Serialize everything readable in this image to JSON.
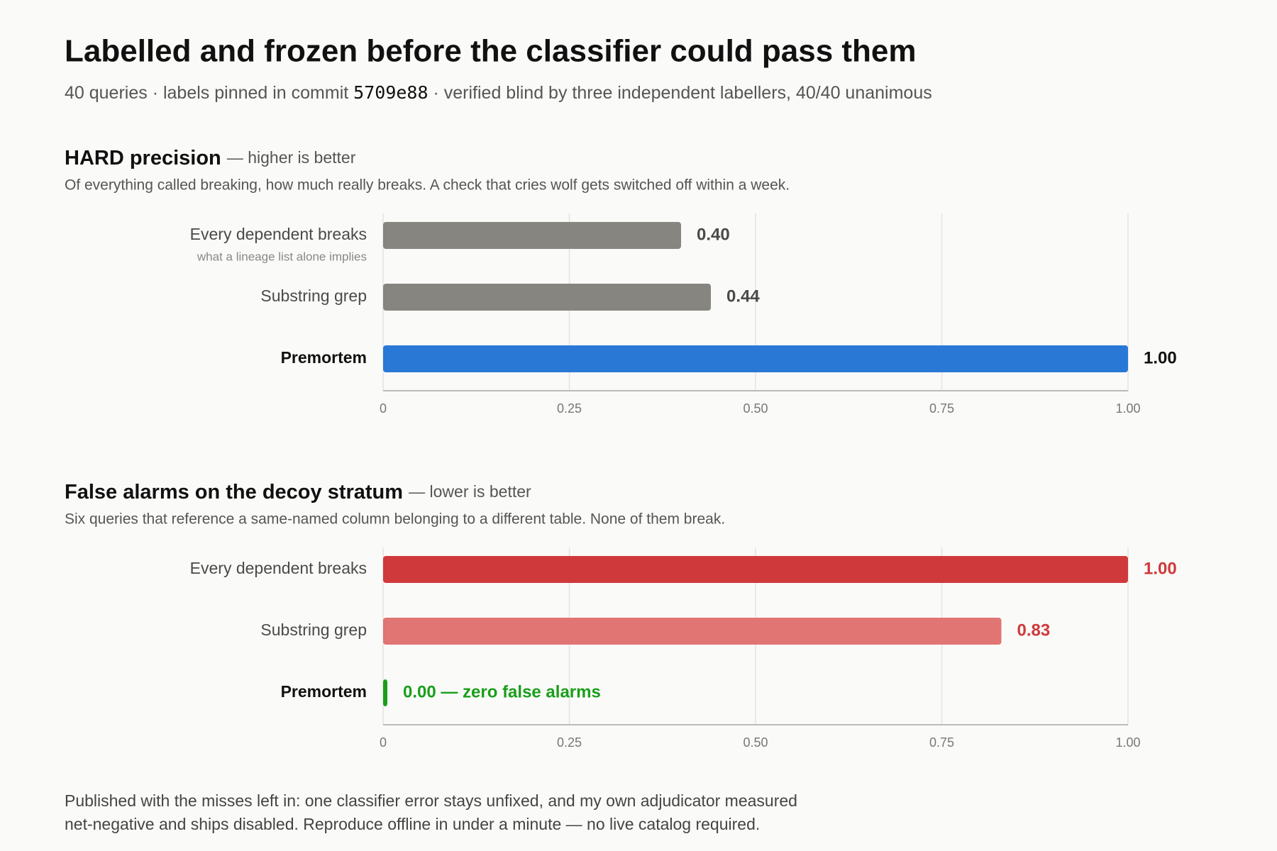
{
  "header": {
    "title": "Labelled and frozen before the classifier could pass them",
    "subtitle": {
      "before": "40 queries · labels pinned in commit",
      "commit": "5709e88",
      "after": "· verified blind by three independent labellers, 40/40 unanimous"
    }
  },
  "chart_data": [
    {
      "type": "bar",
      "orientation": "horizontal",
      "title": "HARD precision",
      "subtitle": "— higher is better",
      "description": "Of everything called breaking, how much really breaks. A check that cries wolf gets switched off within a week.",
      "categories": [
        "Every dependent breaks",
        "Substring grep",
        "Premortem"
      ],
      "category_notes": [
        "what a lineage list alone implies",
        null,
        null
      ],
      "highlight_index": 2,
      "values": [
        0.4,
        0.44,
        1.0
      ],
      "value_labels": [
        "0.40",
        "0.44",
        "1.00"
      ],
      "colors": [
        "#878580",
        "#878580",
        "#2a78d6"
      ],
      "label_colors": [
        "#4a4a4a",
        "#4a4a4a",
        "#111111"
      ],
      "xlim": [
        0,
        1
      ],
      "xticks": [
        0,
        0.25,
        {
          "value": 0.5,
          "label": "0.50"
        },
        0.75,
        {
          "value": 1,
          "label": "1.00"
        }
      ],
      "grid": true
    },
    {
      "type": "bar",
      "orientation": "horizontal",
      "title": "False alarms on the decoy stratum",
      "subtitle": "— lower is better",
      "description": "Six queries that reference a same-named column belonging to a different table. None of them break.",
      "categories": [
        "Every dependent breaks",
        "Substring grep",
        "Premortem"
      ],
      "category_notes": [
        null,
        null,
        null
      ],
      "highlight_index": 2,
      "values": [
        1.0,
        0.83,
        0.0
      ],
      "value_labels": [
        "1.00",
        "0.83",
        "0.00 — zero false alarms"
      ],
      "colors": [
        "#d0393b",
        "#e07573",
        "#1a9e1a"
      ],
      "label_colors": [
        "#d0393b",
        "#d0393b",
        "#1a9e1a"
      ],
      "xlim": [
        0,
        1
      ],
      "xticks": [
        0,
        0.25,
        {
          "value": 0.5,
          "label": "0.50"
        },
        0.75,
        {
          "value": 1,
          "label": "1.00"
        }
      ],
      "grid": true
    }
  ],
  "footer": [
    "Published with the misses left in: one classifier error stays unfixed, and my own adjudicator measured",
    "net-negative and ships disabled. Reproduce offline in under a minute — no live catalog required."
  ]
}
